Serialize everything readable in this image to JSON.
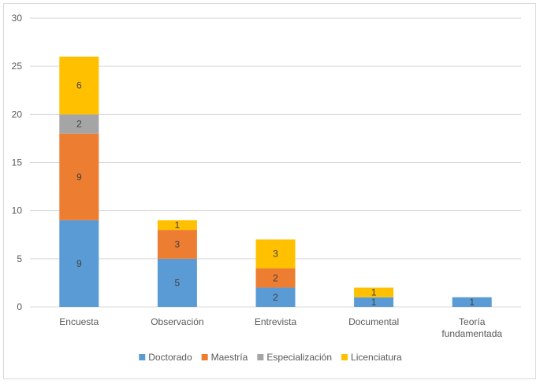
{
  "chart_data": {
    "type": "bar",
    "stacked": true,
    "categories": [
      "Encuesta",
      "Observación",
      "Entrevista",
      "Documental",
      "Teoría fundamentada"
    ],
    "series": [
      {
        "name": "Doctorado",
        "values": [
          9,
          5,
          2,
          1,
          1
        ],
        "color": "#5b9bd5"
      },
      {
        "name": "Maestría",
        "values": [
          9,
          3,
          2,
          0,
          0
        ],
        "color": "#ed7d31"
      },
      {
        "name": "Especialización",
        "values": [
          2,
          0,
          0,
          0,
          0
        ],
        "color": "#a5a5a5"
      },
      {
        "name": "Licenciatura",
        "values": [
          6,
          1,
          3,
          1,
          0
        ],
        "color": "#ffc000"
      }
    ],
    "ylim": [
      0,
      30
    ],
    "yticks": [
      0,
      5,
      10,
      15,
      20,
      25,
      30
    ],
    "grid": true,
    "legend_position": "bottom",
    "data_labels": true
  }
}
